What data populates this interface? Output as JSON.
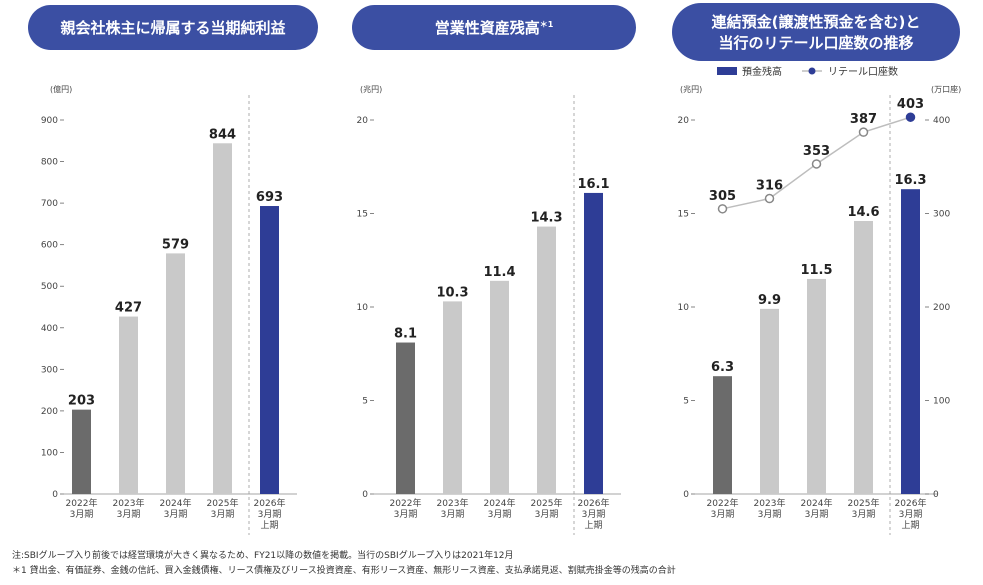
{
  "chart_data": [
    {
      "type": "bar",
      "title": "親会社株主に帰属する当期純利益",
      "unit_label": "(億円)",
      "categories": [
        [
          "2022年",
          "3月期"
        ],
        [
          "2023年",
          "3月期"
        ],
        [
          "2024年",
          "3月期"
        ],
        [
          "2025年",
          "3月期"
        ],
        [
          "2026年",
          "3月期",
          "上期"
        ]
      ],
      "values": [
        203,
        427,
        579,
        844,
        693
      ],
      "value_labels": [
        "203",
        "427",
        "579",
        "844",
        "693"
      ],
      "ylim": [
        0,
        900
      ],
      "yticks": [
        0,
        100,
        200,
        300,
        400,
        500,
        600,
        700,
        800,
        900
      ],
      "colors": [
        "#6b6b6b",
        "#c9c9c9",
        "#c9c9c9",
        "#c9c9c9",
        "#2e3d96"
      ]
    },
    {
      "type": "bar",
      "title": "営業性資産残高",
      "title_note": "＊1",
      "unit_label": "(兆円)",
      "categories": [
        [
          "2022年",
          "3月期"
        ],
        [
          "2023年",
          "3月期"
        ],
        [
          "2024年",
          "3月期"
        ],
        [
          "2025年",
          "3月期"
        ],
        [
          "2026年",
          "3月期",
          "上期"
        ]
      ],
      "values": [
        8.1,
        10.3,
        11.4,
        14.3,
        16.1
      ],
      "value_labels": [
        "8.1",
        "10.3",
        "11.4",
        "14.3",
        "16.1"
      ],
      "ylim": [
        0,
        20
      ],
      "yticks": [
        0,
        5,
        10,
        15,
        20
      ],
      "colors": [
        "#6b6b6b",
        "#c9c9c9",
        "#c9c9c9",
        "#c9c9c9",
        "#2e3d96"
      ]
    },
    {
      "type": "bar+line",
      "title_lines": [
        "連結預金(譲渡性預金を含む)と",
        "当行のリテール口座数の推移"
      ],
      "unit_label": "(兆円)",
      "unit_label_right": "(万口座)",
      "legend": [
        "預金残高",
        "リテール口座数"
      ],
      "legend_placement": "top",
      "categories": [
        [
          "2022年",
          "3月期"
        ],
        [
          "2023年",
          "3月期"
        ],
        [
          "2024年",
          "3月期"
        ],
        [
          "2025年",
          "3月期"
        ],
        [
          "2026年",
          "3月期",
          "上期"
        ]
      ],
      "values": [
        6.3,
        9.9,
        11.5,
        14.6,
        16.3
      ],
      "value_labels": [
        "6.3",
        "9.9",
        "11.5",
        "14.6",
        "16.3"
      ],
      "line_values": [
        305,
        316,
        353,
        387,
        403
      ],
      "line_labels": [
        "305",
        "316",
        "353",
        "387",
        "403"
      ],
      "ylim": [
        0,
        20
      ],
      "yticks": [
        0,
        5,
        10,
        15,
        20
      ],
      "ylim_right": [
        0,
        400
      ],
      "yticks_right": [
        0,
        100,
        200,
        300,
        400
      ],
      "colors": [
        "#6b6b6b",
        "#c9c9c9",
        "#c9c9c9",
        "#c9c9c9",
        "#2e3d96"
      ]
    }
  ],
  "notes": [
    "注:SBIグループ入り前後では経営環境が大きく異なるため、FY21以降の数値を掲載。当行のSBIグループ入りは2021年12月",
    "＊1 貸出金、有価証券、金銭の信託、買入金銭債権、リース債権及びリース投資資産、有形リース資産、無形リース資産、支払承諾見返、割賦売掛金等の残高の合計"
  ],
  "colors": {
    "header": "#3b4fa3",
    "navy": "#2e3d96",
    "dark": "#6b6b6b",
    "light": "#c9c9c9",
    "line": "#bdbdbd"
  }
}
